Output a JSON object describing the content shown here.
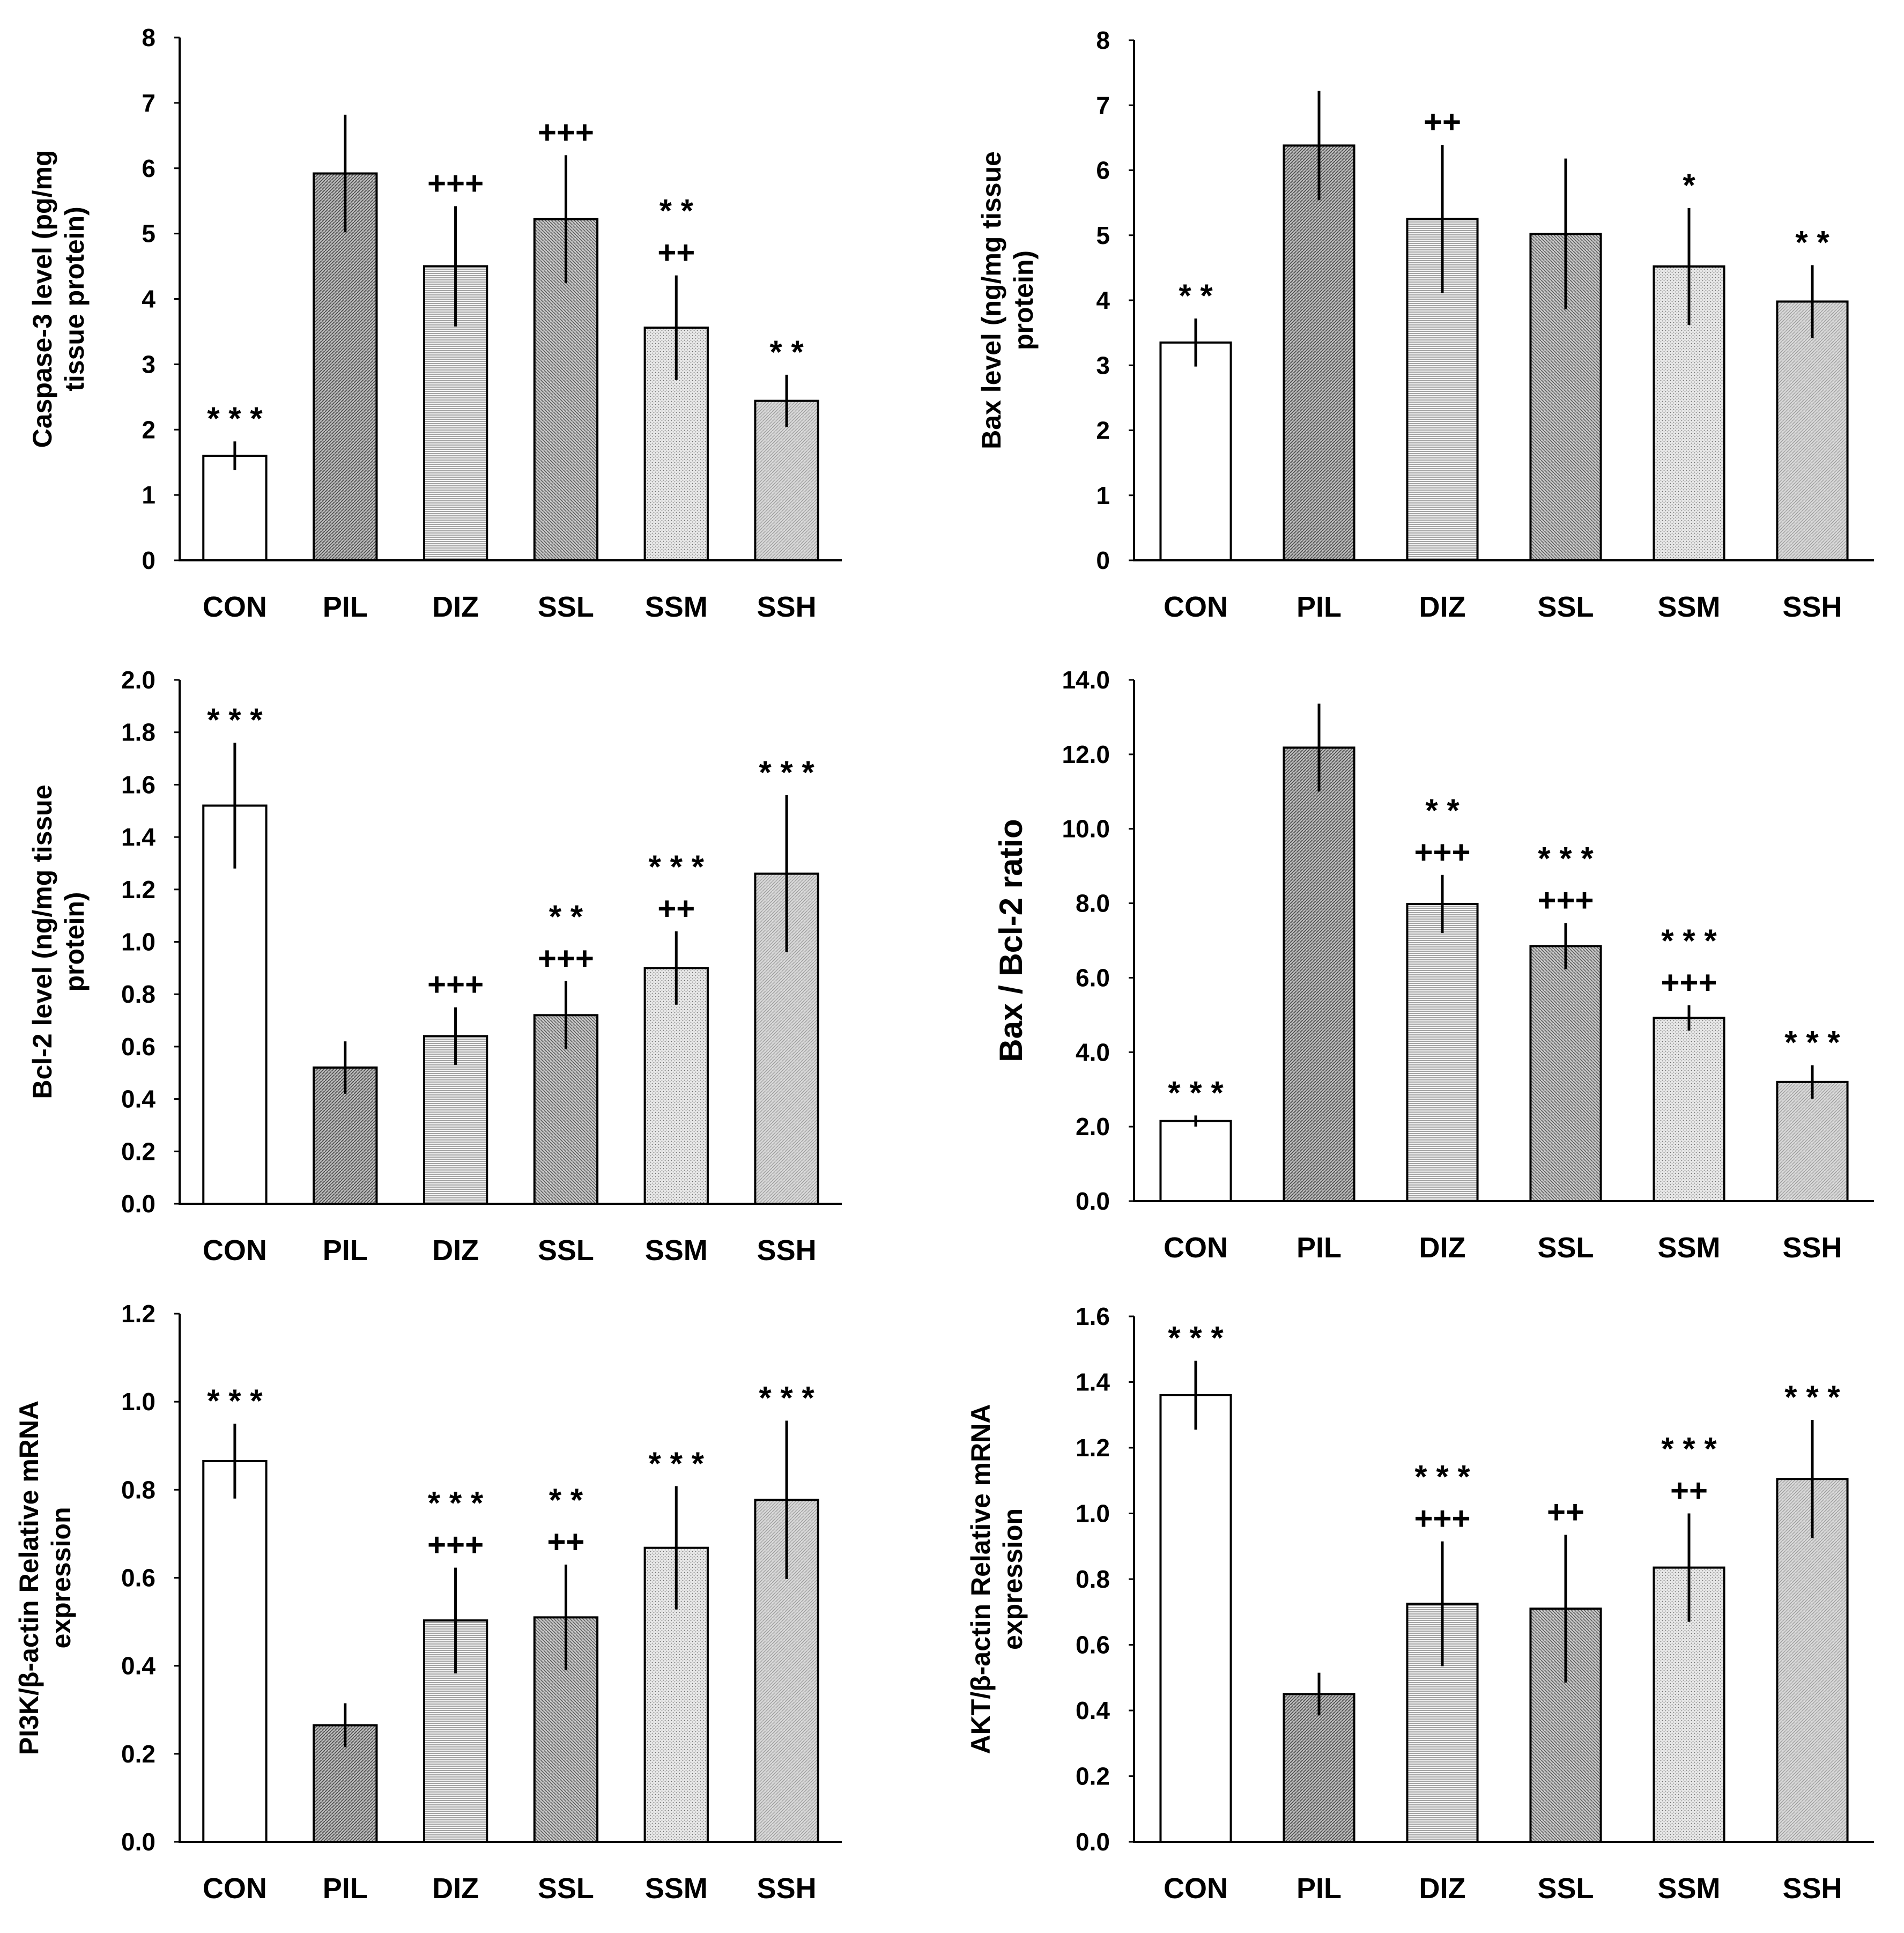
{
  "chart_data": [
    {
      "type": "bar",
      "categories": [
        "CON",
        "PIL",
        "DIZ",
        "SSL",
        "SSM",
        "SSH"
      ],
      "ylabel_lines": [
        "Caspase-3 level (pg/mg",
        "tissue protein)"
      ],
      "ylim": [
        0,
        8
      ],
      "yticks": [
        "0",
        "1",
        "2",
        "3",
        "4",
        "5",
        "6",
        "7",
        "8"
      ],
      "values": [
        1.6,
        5.92,
        4.5,
        5.22,
        3.56,
        2.44
      ],
      "errors": [
        0.22,
        0.9,
        0.92,
        0.98,
        0.8,
        0.4
      ],
      "significance": [
        [
          "* * *"
        ],
        [],
        [
          "+++"
        ],
        [
          "+++"
        ],
        [
          "* *",
          "++"
        ],
        [
          "* *"
        ]
      ]
    },
    {
      "type": "bar",
      "categories": [
        "CON",
        "PIL",
        "DIZ",
        "SSL",
        "SSM",
        "SSH"
      ],
      "ylabel_lines": [
        "Bax level (ng/mg tissue",
        "protein)"
      ],
      "ylim": [
        0,
        8
      ],
      "yticks": [
        "0",
        "1",
        "2",
        "3",
        "4",
        "5",
        "6",
        "7",
        "8"
      ],
      "values": [
        3.35,
        6.38,
        5.25,
        5.02,
        4.52,
        3.98
      ],
      "errors": [
        0.37,
        0.84,
        1.14,
        1.16,
        0.9,
        0.56
      ],
      "significance": [
        [
          "* *"
        ],
        [],
        [
          "++"
        ],
        [],
        [
          "*"
        ],
        [
          "* *"
        ]
      ]
    },
    {
      "type": "bar",
      "categories": [
        "CON",
        "PIL",
        "DIZ",
        "SSL",
        "SSM",
        "SSH"
      ],
      "ylabel_lines": [
        "Bcl-2 level (ng/mg tissue",
        "protein)"
      ],
      "ylim": [
        0,
        2
      ],
      "yticks": [
        "0.0",
        "0.2",
        "0.4",
        "0.6",
        "0.8",
        "1.0",
        "1.2",
        "1.4",
        "1.6",
        "1.8",
        "2.0"
      ],
      "values": [
        1.52,
        0.52,
        0.64,
        0.72,
        0.9,
        1.26
      ],
      "errors": [
        0.24,
        0.1,
        0.11,
        0.13,
        0.14,
        0.3
      ],
      "significance": [
        [
          "* * *"
        ],
        [],
        [
          "+++"
        ],
        [
          "* *",
          "+++"
        ],
        [
          "* * *",
          "++"
        ],
        [
          "* * *"
        ]
      ]
    },
    {
      "type": "bar",
      "categories": [
        "CON",
        "PIL",
        "DIZ",
        "SSL",
        "SSM",
        "SSH"
      ],
      "ylabel_lines": [
        "Bax / Bcl-2 ratio"
      ],
      "ylim": [
        0,
        14
      ],
      "yticks": [
        "0.0",
        "2.0",
        "4.0",
        "6.0",
        "8.0",
        "10.0",
        "12.0",
        "14.0"
      ],
      "values": [
        2.15,
        12.18,
        7.98,
        6.85,
        4.92,
        3.2
      ],
      "errors": [
        0.15,
        1.18,
        0.78,
        0.62,
        0.34,
        0.45
      ],
      "significance": [
        [
          "* * *"
        ],
        [],
        [
          "* *",
          "+++"
        ],
        [
          "* * *",
          "+++"
        ],
        [
          "* * *",
          "+++"
        ],
        [
          "* * *"
        ]
      ]
    },
    {
      "type": "bar",
      "categories": [
        "CON",
        "PIL",
        "DIZ",
        "SSL",
        "SSM",
        "SSH"
      ],
      "ylabel_lines": [
        "PI3K/β-actin Relative mRNA",
        "expression"
      ],
      "ylim": [
        0,
        1.2
      ],
      "yticks": [
        "0.0",
        "0.2",
        "0.4",
        "0.6",
        "0.8",
        "1.0",
        "1.2"
      ],
      "values": [
        0.865,
        0.265,
        0.503,
        0.51,
        0.668,
        0.777
      ],
      "errors": [
        0.085,
        0.05,
        0.12,
        0.12,
        0.14,
        0.18
      ],
      "significance": [
        [
          "* * *"
        ],
        [],
        [
          "* * *",
          "+++"
        ],
        [
          "* *",
          "++"
        ],
        [
          "* * *"
        ],
        [
          "* * *"
        ]
      ]
    },
    {
      "type": "bar",
      "categories": [
        "CON",
        "PIL",
        "DIZ",
        "SSL",
        "SSM",
        "SSH"
      ],
      "ylabel_lines": [
        "AKT/β-actin Relative mRNA",
        "expression"
      ],
      "ylim": [
        0,
        1.6
      ],
      "yticks": [
        "0.0",
        "0.2",
        "0.4",
        "0.6",
        "0.8",
        "1.0",
        "1.2",
        "1.4",
        "1.6"
      ],
      "values": [
        1.36,
        0.45,
        0.725,
        0.71,
        0.835,
        1.105
      ],
      "errors": [
        0.105,
        0.065,
        0.19,
        0.225,
        0.165,
        0.18
      ],
      "significance": [
        [
          "* * *"
        ],
        [],
        [
          "* * *",
          "+++"
        ],
        [
          "++"
        ],
        [
          "* * *",
          "++"
        ],
        [
          "* * *"
        ]
      ]
    }
  ]
}
